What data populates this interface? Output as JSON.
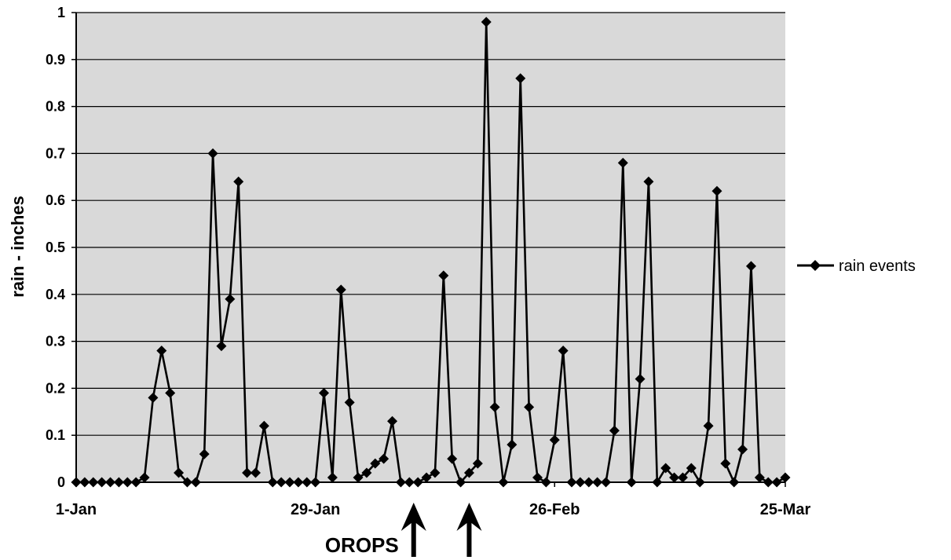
{
  "chart_data": {
    "type": "line",
    "title": "",
    "xlabel": "",
    "ylabel": "rain - inches",
    "x_tick_labels": [
      "1-Jan",
      "29-Jan",
      "26-Feb",
      "25-Mar"
    ],
    "x_tick_days": [
      1,
      29,
      57,
      84
    ],
    "ylim": [
      0,
      1
    ],
    "y_ticks": [
      "0",
      "0.1",
      "0.2",
      "0.3",
      "0.4",
      "0.5",
      "0.6",
      "0.7",
      "0.8",
      "0.9",
      "1"
    ],
    "grid": true,
    "legend_position": "right",
    "background_color": "#d9d9d9",
    "line_color": "#000000",
    "marker": "diamond",
    "series": [
      {
        "name": "rain events",
        "x": [
          1,
          2,
          3,
          4,
          5,
          6,
          7,
          8,
          9,
          10,
          11,
          12,
          13,
          14,
          15,
          16,
          17,
          18,
          19,
          20,
          21,
          22,
          23,
          24,
          25,
          26,
          27,
          28,
          29,
          30,
          31,
          32,
          33,
          34,
          35,
          36,
          37,
          38,
          39,
          40,
          41,
          42,
          43,
          44,
          45,
          46,
          47,
          48,
          49,
          50,
          51,
          52,
          53,
          54,
          55,
          56,
          57,
          58,
          59,
          60,
          61,
          62,
          63,
          64,
          65,
          66,
          67,
          68,
          69,
          70,
          71,
          72,
          73,
          74,
          75,
          76,
          77,
          78,
          79,
          80,
          81,
          82,
          83,
          84
        ],
        "values": [
          0,
          0,
          0,
          0,
          0,
          0,
          0,
          0,
          0.01,
          0.18,
          0.28,
          0.19,
          0.02,
          0,
          0,
          0.06,
          0.7,
          0.29,
          0.39,
          0.64,
          0.02,
          0.02,
          0.12,
          0,
          0,
          0,
          0,
          0,
          0,
          0.19,
          0.01,
          0.41,
          0.17,
          0.01,
          0.02,
          0.04,
          0.05,
          0.13,
          0,
          0,
          0,
          0.01,
          0.02,
          0.44,
          0.05,
          0,
          0.02,
          0.04,
          0.98,
          0.16,
          0,
          0.08,
          0.86,
          0.16,
          0.01,
          0,
          0.09,
          0.28,
          0,
          0,
          0,
          0,
          0,
          0.11,
          0.68,
          0,
          0.22,
          0.64,
          0,
          0.03,
          0.01,
          0.01,
          0.03,
          0,
          0.12,
          0.62,
          0.04,
          0,
          0.07,
          0.46,
          0.01,
          0,
          0,
          0.01
        ]
      }
    ],
    "annotations": [
      {
        "text": "OROPS",
        "arrow_days": [
          40.5,
          47
        ]
      }
    ]
  }
}
